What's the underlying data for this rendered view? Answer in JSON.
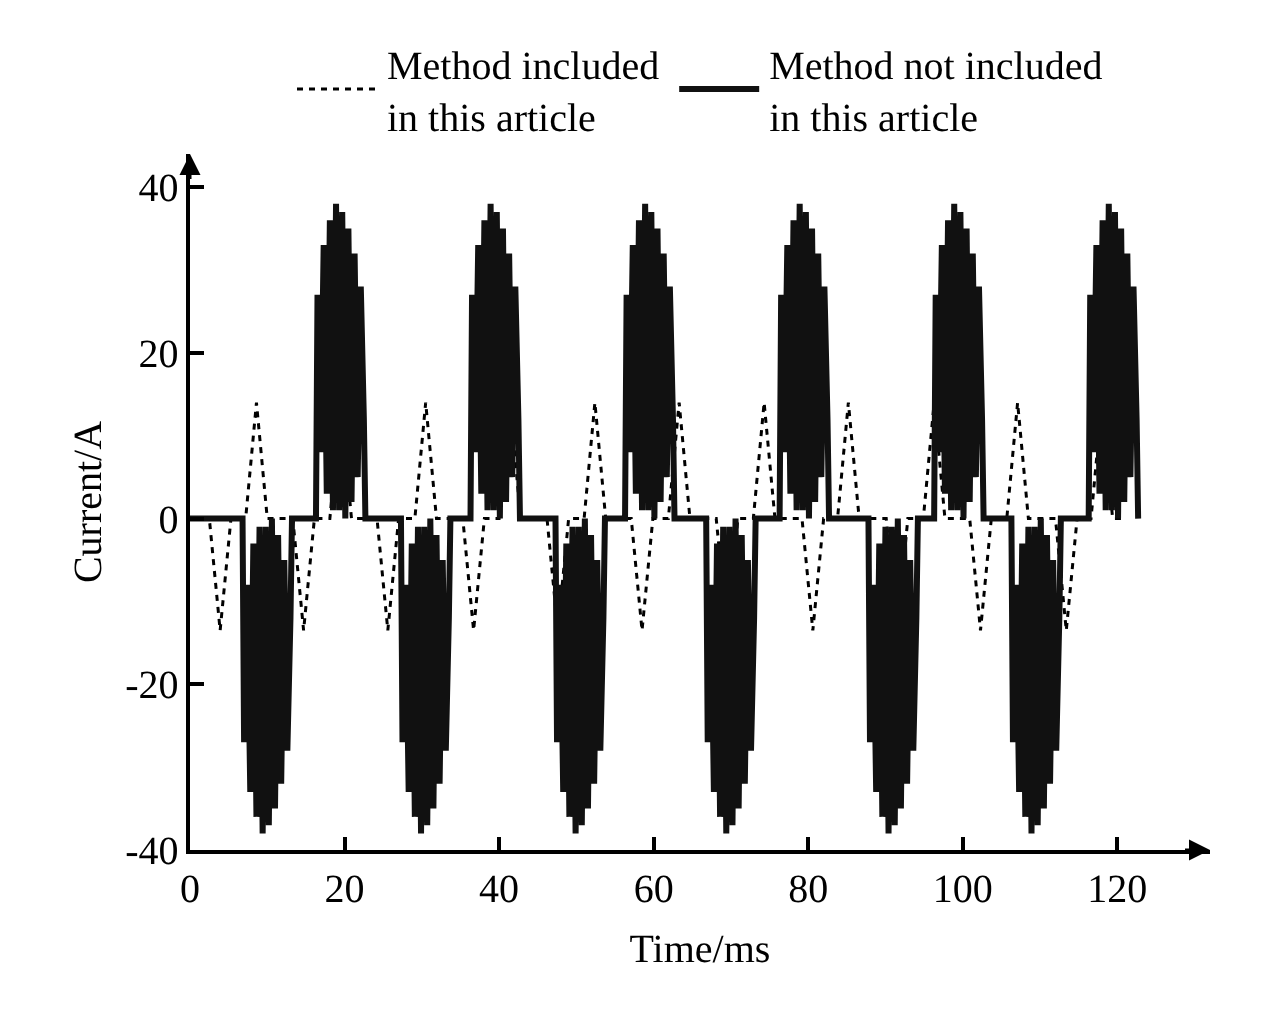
{
  "chart_data": {
    "type": "line",
    "xlabel": "Time/ms",
    "ylabel": "Current/A",
    "xlim": [
      0,
      132
    ],
    "ylim": [
      -40,
      44
    ],
    "xticks": [
      0,
      20,
      40,
      60,
      80,
      100,
      120
    ],
    "yticks": [
      -40,
      -20,
      0,
      20,
      40
    ],
    "legend": "top",
    "marker": "none",
    "series": [
      {
        "name": "Method included\nin this article",
        "color": "#000000",
        "line_style": "dotted",
        "x": [
          0,
          2.5,
          3.9,
          5.3,
          7.2,
          8.6,
          10,
          13.3,
          14.7,
          16.1,
          18.1,
          19.5,
          20.9,
          24.2,
          25.6,
          27,
          29.1,
          30.5,
          31.9,
          35.3,
          36.7,
          38.1,
          40,
          41.4,
          42.8,
          46.2,
          47.6,
          49,
          51,
          52.4,
          53.8,
          57.1,
          58.5,
          59.9,
          61.9,
          63.3,
          64.7,
          68.1,
          69.5,
          70.9,
          72.9,
          74.3,
          75.7,
          79.2,
          80.6,
          82,
          83.8,
          85.2,
          86.6,
          90.1,
          91.5,
          92.9,
          94.9,
          96.3,
          97.7,
          100.9,
          102.3,
          103.7,
          105.7,
          107.1,
          108.5,
          112,
          113.4,
          114.8,
          116.6,
          118,
          119.4,
          121
        ],
        "values": [
          0,
          0,
          -13.5,
          0,
          0,
          14,
          0,
          0,
          -13.5,
          0,
          0,
          14,
          0,
          0,
          -13.5,
          0,
          0,
          14,
          0,
          0,
          -13.5,
          0,
          0,
          14,
          0,
          0,
          -13.5,
          0,
          0,
          14,
          0,
          0,
          -13.5,
          0,
          0,
          14,
          0,
          0,
          -13.5,
          0,
          0,
          14,
          0,
          0,
          -13.5,
          0,
          0,
          14,
          0,
          0,
          -13.5,
          0,
          0,
          14,
          0,
          0,
          -13.5,
          0,
          0,
          14,
          0,
          0,
          -13.5,
          0,
          0,
          14,
          0,
          0
        ]
      },
      {
        "name": "Method not included\nin this article",
        "color": "#111111",
        "line_style": "solid",
        "x": [
          0,
          6.8,
          7,
          7.4,
          7.8,
          8.2,
          8.6,
          9,
          9.4,
          9.8,
          10.2,
          10.6,
          11,
          11.4,
          11.8,
          12.2,
          12.6,
          13,
          13.2,
          16.3,
          16.5,
          16.9,
          17.3,
          17.7,
          18.1,
          18.5,
          18.9,
          19.3,
          19.7,
          20.1,
          20.5,
          20.9,
          21.3,
          21.7,
          22.1,
          22.5,
          22.7,
          27.3,
          27.5,
          27.9,
          28.3,
          28.7,
          29.1,
          29.5,
          29.9,
          30.3,
          30.7,
          31.1,
          31.5,
          31.9,
          32.3,
          32.7,
          33.1,
          33.5,
          33.7,
          36.3,
          36.5,
          36.9,
          37.3,
          37.7,
          38.1,
          38.5,
          38.9,
          39.3,
          39.7,
          40.1,
          40.5,
          40.9,
          41.3,
          41.7,
          42.1,
          42.5,
          42.7,
          47.3,
          47.5,
          47.9,
          48.3,
          48.7,
          49.1,
          49.5,
          49.9,
          50.3,
          50.7,
          51.1,
          51.5,
          51.9,
          52.3,
          52.7,
          53.1,
          53.5,
          53.7,
          56.3,
          56.5,
          56.9,
          57.3,
          57.7,
          58.1,
          58.5,
          58.9,
          59.3,
          59.7,
          60.1,
          60.5,
          60.9,
          61.3,
          61.7,
          62.1,
          62.5,
          62.7,
          66.8,
          67,
          67.4,
          67.8,
          68.2,
          68.6,
          69,
          69.4,
          69.8,
          70.2,
          70.6,
          71,
          71.4,
          71.8,
          72.2,
          72.6,
          73,
          73.2,
          76.3,
          76.5,
          76.9,
          77.3,
          77.7,
          78.1,
          78.5,
          78.9,
          79.3,
          79.7,
          80.1,
          80.5,
          80.9,
          81.3,
          81.7,
          82.1,
          82.5,
          82.7,
          87.8,
          88,
          88.4,
          88.8,
          89.2,
          89.6,
          90,
          90.4,
          90.8,
          91.2,
          91.6,
          92,
          92.4,
          92.8,
          93.2,
          93.6,
          94,
          94.2,
          96.3,
          96.5,
          96.9,
          97.3,
          97.7,
          98.1,
          98.5,
          98.9,
          99.3,
          99.7,
          100.1,
          100.5,
          100.9,
          101.3,
          101.7,
          102.1,
          102.5,
          102.7,
          106.3,
          106.5,
          106.9,
          107.3,
          107.7,
          108.1,
          108.5,
          108.9,
          109.3,
          109.7,
          110.1,
          110.5,
          110.9,
          111.3,
          111.7,
          112.1,
          112.5,
          112.7,
          116.3,
          116.5,
          116.9,
          117.3,
          117.7,
          118.1,
          118.5,
          118.9,
          119.3,
          119.7,
          120.1,
          120.5,
          120.9,
          121.3,
          121.7,
          122.1,
          122.5,
          122.7
        ],
        "values": [
          0,
          0,
          -27,
          -8,
          -33,
          -3,
          -36,
          -1,
          -38,
          -1,
          -37,
          0,
          -35,
          -2,
          -32,
          -5,
          -28,
          -12,
          0,
          0,
          27,
          8,
          33,
          3,
          36,
          1,
          38,
          1,
          37,
          0,
          35,
          2,
          32,
          5,
          28,
          12,
          0,
          0,
          -27,
          -8,
          -33,
          -3,
          -36,
          -1,
          -38,
          -1,
          -37,
          0,
          -35,
          -2,
          -32,
          -5,
          -28,
          -12,
          0,
          0,
          27,
          8,
          33,
          3,
          36,
          1,
          38,
          1,
          37,
          0,
          35,
          2,
          32,
          5,
          28,
          12,
          0,
          0,
          -27,
          -8,
          -33,
          -3,
          -36,
          -1,
          -38,
          -1,
          -37,
          0,
          -35,
          -2,
          -32,
          -5,
          -28,
          -12,
          0,
          0,
          27,
          8,
          33,
          3,
          36,
          1,
          38,
          1,
          37,
          0,
          35,
          2,
          32,
          5,
          28,
          12,
          0,
          0,
          -27,
          -8,
          -33,
          -3,
          -36,
          -1,
          -38,
          -1,
          -37,
          0,
          -35,
          -2,
          -32,
          -5,
          -28,
          -12,
          0,
          0,
          27,
          8,
          33,
          3,
          36,
          1,
          38,
          1,
          37,
          0,
          35,
          2,
          32,
          5,
          28,
          12,
          0,
          0,
          -27,
          -8,
          -33,
          -3,
          -36,
          -1,
          -38,
          -1,
          -37,
          0,
          -35,
          -2,
          -32,
          -5,
          -28,
          -12,
          0,
          0,
          27,
          8,
          33,
          3,
          36,
          1,
          38,
          1,
          37,
          0,
          35,
          2,
          32,
          5,
          28,
          12,
          0,
          0,
          -27,
          -8,
          -33,
          -3,
          -36,
          -1,
          -38,
          -1,
          -37,
          0,
          -35,
          -2,
          -32,
          -5,
          -28,
          -12,
          0,
          0,
          27,
          8,
          33,
          3,
          36,
          1,
          38,
          1,
          37,
          0,
          35,
          2,
          32,
          5,
          28,
          12,
          0
        ]
      }
    ]
  }
}
